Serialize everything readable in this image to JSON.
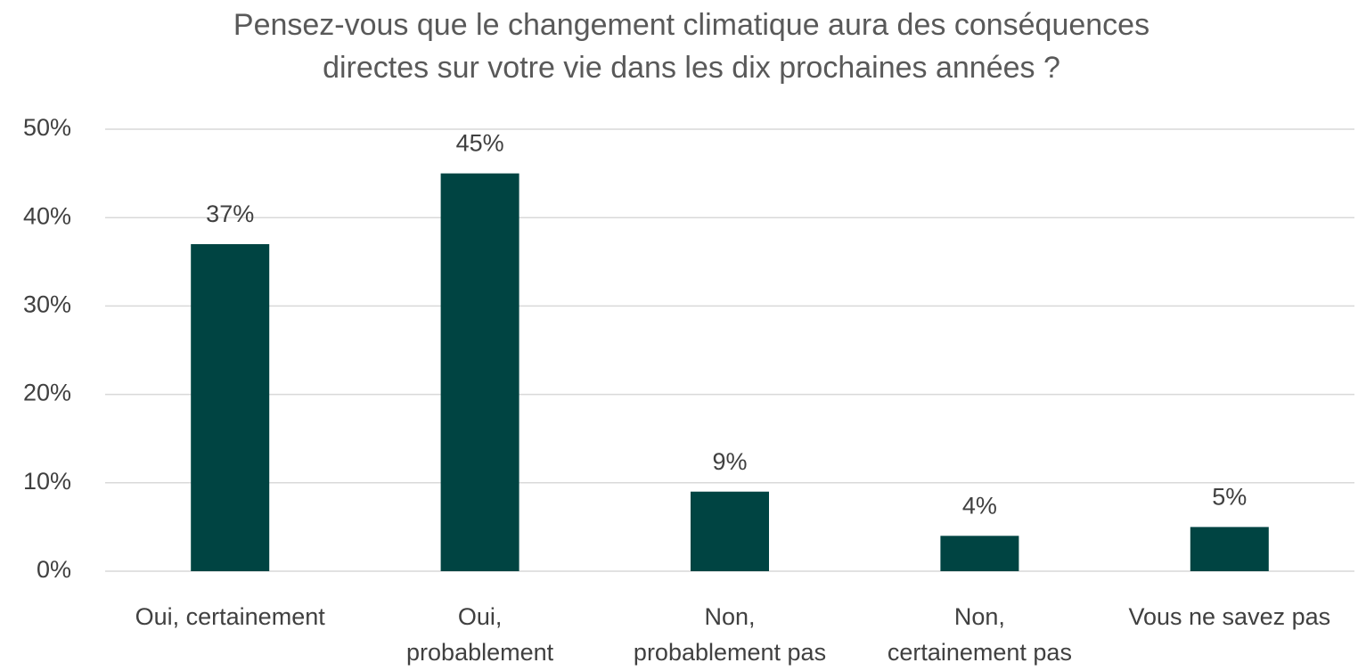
{
  "chart_data": {
    "type": "bar",
    "title": "Pensez-vous que le changement climatique aura des conséquences\ndirectes sur votre vie dans les dix prochaines années ?",
    "categories": [
      "Oui, certainement",
      "Oui,\nprobablement",
      "Non,\nprobablement pas",
      "Non,\ncertainement pas",
      "Vous ne savez pas"
    ],
    "values": [
      37,
      45,
      9,
      4,
      5
    ],
    "value_labels": [
      "37%",
      "45%",
      "9%",
      "4%",
      "5%"
    ],
    "color": "#004442",
    "ylim": [
      0,
      50
    ],
    "yticks": [
      {
        "value": 0,
        "label": "0%"
      },
      {
        "value": 10,
        "label": "10%"
      },
      {
        "value": 20,
        "label": "20%"
      },
      {
        "value": 30,
        "label": "30%"
      },
      {
        "value": 40,
        "label": "40%"
      },
      {
        "value": 50,
        "label": "50%"
      }
    ],
    "grid": true
  }
}
